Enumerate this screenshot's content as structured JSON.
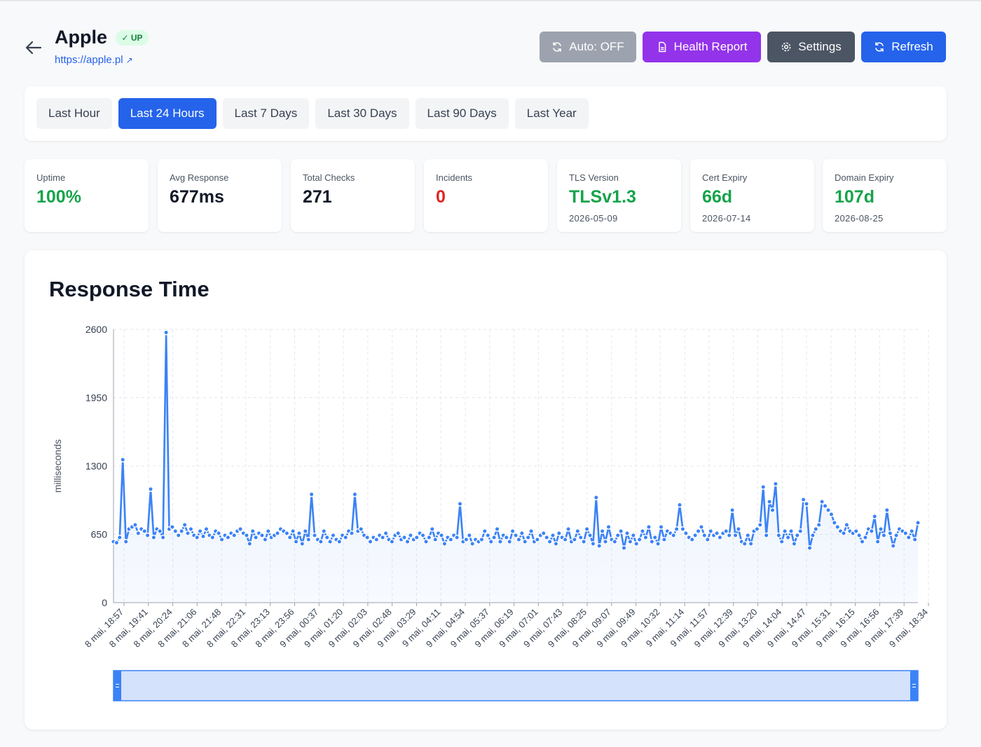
{
  "header": {
    "site_name": "Apple",
    "status_badge": "✓ UP",
    "url": "https://apple.pl",
    "url_icon": "external-link-icon",
    "back_icon": "arrow-left-icon"
  },
  "actions": {
    "auto_label": "Auto: OFF",
    "health_report_label": "Health Report",
    "settings_label": "Settings",
    "refresh_label": "Refresh"
  },
  "time_ranges": {
    "items": [
      "Last Hour",
      "Last 24 Hours",
      "Last 7 Days",
      "Last 30 Days",
      "Last 90 Days",
      "Last Year"
    ],
    "active": "Last 24 Hours"
  },
  "stats": {
    "uptime": {
      "label": "Uptime",
      "value": "100%"
    },
    "avg_response": {
      "label": "Avg Response",
      "value": "677ms"
    },
    "total_checks": {
      "label": "Total Checks",
      "value": "271"
    },
    "incidents": {
      "label": "Incidents",
      "value": "0"
    },
    "tls": {
      "label": "TLS Version",
      "value": "TLSv1.3",
      "sub": "2026-05-09"
    },
    "cert": {
      "label": "Cert Expiry",
      "value": "66d",
      "sub": "2026-07-14"
    },
    "domain": {
      "label": "Domain Expiry",
      "value": "107d",
      "sub": "2026-08-25"
    }
  },
  "colors": {
    "accent": "#2563eb",
    "series": "#3b82f6",
    "success": "#16a34a",
    "danger": "#dc2626",
    "purple": "#9333ea"
  },
  "chart_data": {
    "type": "line",
    "title": "Response Time",
    "ylabel": "milliseconds",
    "ylim": [
      0,
      2600
    ],
    "yticks": [
      0,
      650,
      1300,
      1950,
      2600
    ],
    "grid": true,
    "x_tick_labels": [
      "8 mai, 18:57",
      "8 mai, 19:41",
      "8 mai, 20:24",
      "8 mai, 21:06",
      "8 mai, 21:48",
      "8 mai, 22:31",
      "8 mai, 23:13",
      "8 mai, 23:56",
      "9 mai, 00:37",
      "9 mai, 01:20",
      "9 mai, 02:03",
      "9 mai, 02:48",
      "9 mai, 03:29",
      "9 mai, 04:11",
      "9 mai, 04:54",
      "9 mai, 05:37",
      "9 mai, 06:19",
      "9 mai, 07:01",
      "9 mai, 07:43",
      "9 mai, 08:25",
      "9 mai, 09:07",
      "9 mai, 09:49",
      "9 mai, 10:32",
      "9 mai, 11:14",
      "9 mai, 11:57",
      "9 mai, 12:39",
      "9 mai, 13:20",
      "9 mai, 14:04",
      "9 mai, 14:47",
      "9 mai, 15:31",
      "9 mai, 16:15",
      "9 mai, 16:56",
      "9 mai, 17:39",
      "9 mai, 18:34"
    ],
    "series": [
      {
        "values": [
          580,
          570,
          620,
          1360,
          580,
          700,
          720,
          740,
          660,
          700,
          680,
          640,
          1080,
          620,
          700,
          680,
          620,
          2570,
          700,
          720,
          680,
          640,
          680,
          740,
          660,
          700,
          640,
          620,
          680,
          630,
          700,
          640,
          620,
          680,
          660,
          600,
          640,
          620,
          660,
          640,
          680,
          700,
          660,
          640,
          560,
          680,
          620,
          660,
          640,
          600,
          680,
          620,
          640,
          660,
          700,
          680,
          660,
          620,
          680,
          580,
          660,
          560,
          680,
          600,
          1030,
          640,
          600,
          580,
          680,
          620,
          580,
          640,
          600,
          580,
          640,
          620,
          680,
          660,
          1030,
          680,
          700,
          640,
          620,
          580,
          620,
          600,
          640,
          620,
          660,
          600,
          580,
          640,
          660,
          600,
          620,
          580,
          640,
          600,
          620,
          660,
          640,
          580,
          620,
          700,
          600,
          660,
          640,
          560,
          620,
          600,
          640,
          620,
          940,
          580,
          600,
          640,
          560,
          600,
          580,
          600,
          680,
          640,
          580,
          620,
          700,
          580,
          640,
          620,
          580,
          680,
          640,
          600,
          660,
          580,
          620,
          680,
          580,
          600,
          640,
          660,
          620,
          580,
          640,
          560,
          660,
          620,
          600,
          700,
          580,
          600,
          680,
          620,
          580,
          700,
          640,
          560,
          1000,
          540,
          680,
          580,
          720,
          600,
          580,
          640,
          680,
          520,
          660,
          580,
          640,
          560,
          600,
          680,
          620,
          720,
          580,
          620,
          560,
          720,
          600,
          680,
          660,
          640,
          700,
          930,
          700,
          660,
          620,
          600,
          640,
          680,
          720,
          640,
          600,
          680,
          640,
          660,
          620,
          660,
          680,
          640,
          880,
          640,
          700,
          580,
          560,
          640,
          560,
          680,
          700,
          740,
          1100,
          640,
          960,
          880,
          1130,
          640,
          580,
          680,
          620,
          680,
          560,
          640,
          680,
          980,
          940,
          520,
          640,
          700,
          740,
          960,
          920,
          880,
          840,
          760,
          720,
          680,
          660,
          740,
          680,
          660,
          680,
          640,
          580,
          620,
          700,
          680,
          820,
          580,
          700,
          640,
          880,
          660,
          540,
          640,
          700,
          680,
          660,
          620,
          680,
          600,
          760
        ]
      }
    ]
  }
}
